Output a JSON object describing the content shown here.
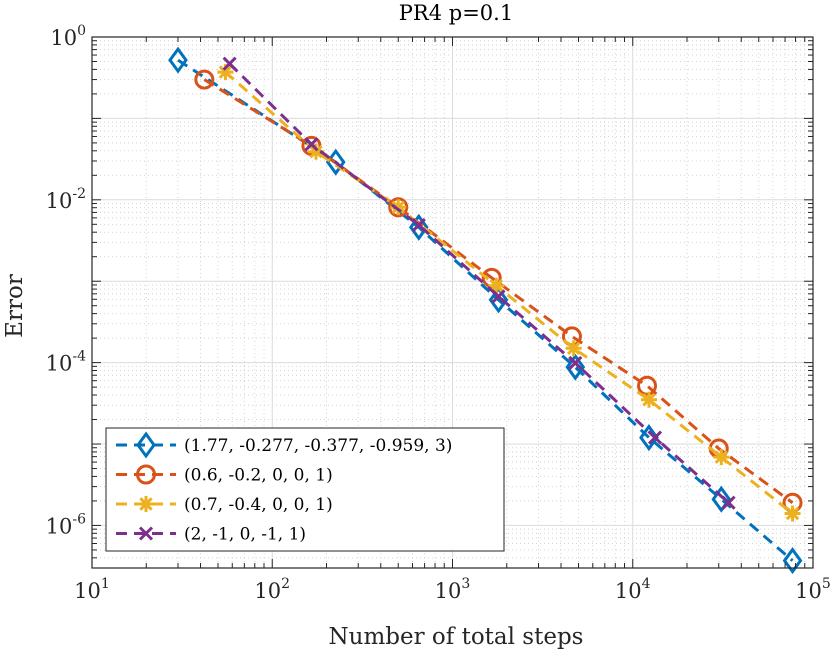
{
  "chart_data": {
    "type": "line",
    "title": "PR4 p=0.1",
    "xlabel": "Number of total steps",
    "ylabel": "Error",
    "xscale": "log",
    "yscale": "log",
    "xlim": [
      10,
      100000
    ],
    "ylim": [
      3e-07,
      1
    ],
    "grid": true,
    "legend_position": "bottom-left",
    "x_ticks": [
      {
        "base": "10",
        "exp": "1",
        "value": 10
      },
      {
        "base": "10",
        "exp": "2",
        "value": 100
      },
      {
        "base": "10",
        "exp": "3",
        "value": 1000
      },
      {
        "base": "10",
        "exp": "4",
        "value": 10000
      },
      {
        "base": "10",
        "exp": "5",
        "value": 100000
      }
    ],
    "y_ticks": [
      {
        "base": "10",
        "exp": "0",
        "value": 1
      },
      {
        "base": "10",
        "exp": "-2",
        "value": 0.01
      },
      {
        "base": "10",
        "exp": "-4",
        "value": 0.0001
      },
      {
        "base": "10",
        "exp": "-6",
        "value": 1e-06
      }
    ],
    "series": [
      {
        "name": "(1.77, -0.277, -0.377, -0.959, 3)",
        "color": "#0072BD",
        "marker": "diamond",
        "x": [
          30,
          225,
          650,
          1800,
          4800,
          12300,
          31000,
          77000
        ],
        "y": [
          0.52,
          0.029,
          0.0046,
          0.00059,
          8.8e-05,
          1.2e-05,
          2.1e-06,
          3.7e-07
        ]
      },
      {
        "name": "(0.6, -0.2, 0, 0, 1)",
        "color": "#D95319",
        "marker": "circle",
        "x": [
          42,
          165,
          500,
          1650,
          4600,
          12000,
          30000,
          77000
        ],
        "y": [
          0.3,
          0.046,
          0.0081,
          0.0011,
          0.00021,
          5.2e-05,
          8.8e-06,
          1.9e-06
        ]
      },
      {
        "name": "(0.7, -0.4, 0, 0, 1)",
        "color": "#EDB120",
        "marker": "asterisk",
        "x": [
          55,
          175,
          500,
          1750,
          4700,
          12300,
          31000,
          77000
        ],
        "y": [
          0.37,
          0.039,
          0.0081,
          0.00088,
          0.00015,
          3.5e-05,
          6.9e-06,
          1.4e-06
        ]
      },
      {
        "name": "(2, -1, 0, -1, 1)",
        "color": "#7E2F8E",
        "marker": "x",
        "x": [
          58,
          165,
          650,
          1800,
          4800,
          13300,
          34000
        ],
        "y": [
          0.47,
          0.048,
          0.0049,
          0.00065,
          9.9e-05,
          1.2e-05,
          1.9e-06
        ]
      }
    ]
  }
}
